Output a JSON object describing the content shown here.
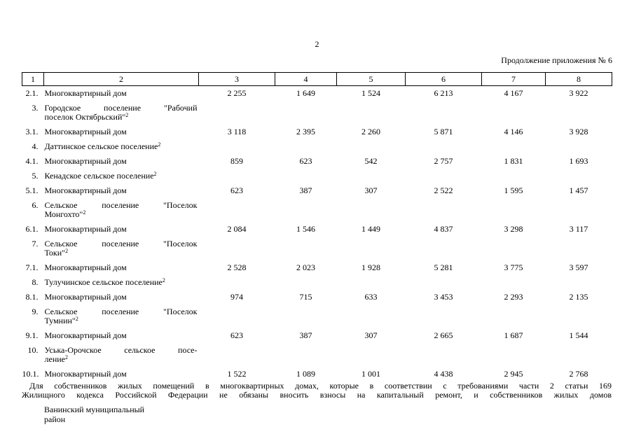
{
  "page": {
    "number": "2",
    "continuation": "Продолжение приложения № 6"
  },
  "table": {
    "header": [
      "1",
      "2",
      "3",
      "4",
      "5",
      "6",
      "7",
      "8"
    ],
    "rows": [
      {
        "num": "2.1.",
        "name": "Многоквартирный дом",
        "sup": "",
        "values": [
          "2 255",
          "1 649",
          "1 524",
          "6 213",
          "4 167",
          "3 922"
        ]
      },
      {
        "num": "3.",
        "name": "Городское поселение \"Рабочий\nпоселок Октябрьский\"",
        "sup": "2",
        "values": [
          "",
          "",
          "",
          "",
          "",
          ""
        ]
      },
      {
        "num": "3.1.",
        "name": "Многоквартирный дом",
        "sup": "",
        "values": [
          "3 118",
          "2 395",
          "2 260",
          "5 871",
          "4 146",
          "3 928"
        ]
      },
      {
        "num": "4.",
        "name": "Даттинское сельское поселение",
        "sup": "2",
        "values": [
          "",
          "",
          "",
          "",
          "",
          ""
        ]
      },
      {
        "num": "4.1.",
        "name": "Многоквартирный дом",
        "sup": "",
        "values": [
          "859",
          "623",
          "542",
          "2 757",
          "1 831",
          "1 693"
        ]
      },
      {
        "num": "5.",
        "name": "Кенадское сельское поселение",
        "sup": "2",
        "values": [
          "",
          "",
          "",
          "",
          "",
          ""
        ]
      },
      {
        "num": "5.1.",
        "name": "Многоквартирный дом",
        "sup": "",
        "values": [
          "623",
          "387",
          "307",
          "2 522",
          "1 595",
          "1 457"
        ]
      },
      {
        "num": "6.",
        "name": "Сельское поселение \"Поселок\nМонгохто\"",
        "sup": "2",
        "values": [
          "",
          "",
          "",
          "",
          "",
          ""
        ]
      },
      {
        "num": "6.1.",
        "name": "Многоквартирный дом",
        "sup": "",
        "values": [
          "2 084",
          "1 546",
          "1 449",
          "4 837",
          "3 298",
          "3 117"
        ]
      },
      {
        "num": "7.",
        "name": "Сельское поселение \"Поселок\nТоки\"",
        "sup": "2",
        "values": [
          "",
          "",
          "",
          "",
          "",
          ""
        ]
      },
      {
        "num": "7.1.",
        "name": "Многоквартирный дом",
        "sup": "",
        "values": [
          "2 528",
          "2 023",
          "1 928",
          "5 281",
          "3 775",
          "3 597"
        ]
      },
      {
        "num": "8.",
        "name": "Тулучинское сельское поселение",
        "sup": "2",
        "values": [
          "",
          "",
          "",
          "",
          "",
          ""
        ]
      },
      {
        "num": "8.1.",
        "name": "Многоквартирный дом",
        "sup": "",
        "values": [
          "974",
          "715",
          "633",
          "3 453",
          "2 293",
          "2 135"
        ]
      },
      {
        "num": "9.",
        "name": "Сельское поселение \"Поселок\nТумнин\"",
        "sup": "2",
        "values": [
          "",
          "",
          "",
          "",
          "",
          ""
        ]
      },
      {
        "num": "9.1.",
        "name": "Многоквартирный дом",
        "sup": "",
        "values": [
          "623",
          "387",
          "307",
          "2 665",
          "1 687",
          "1 544"
        ]
      },
      {
        "num": "10.",
        "name": "Уська-Орочское сельское посе-\nление",
        "sup": "2",
        "values": [
          "",
          "",
          "",
          "",
          "",
          ""
        ]
      },
      {
        "num": "10.1.",
        "name": "Многоквартирный дом",
        "sup": "",
        "values": [
          "1 522",
          "1 089",
          "1 001",
          "4 438",
          "2 945",
          "2 768"
        ]
      }
    ]
  },
  "footnote_lines": [
    "Для собственников жилых помещений в многоквартирных домах, которые в соответствии с требованиями части 2 статьи 169",
    "Жилищного кодекса Российской Федерации не обязаны вносить взносы на капитальный ремонт, и собственников жилых домов"
  ],
  "district": "Ванинский муниципальный\nрайон"
}
